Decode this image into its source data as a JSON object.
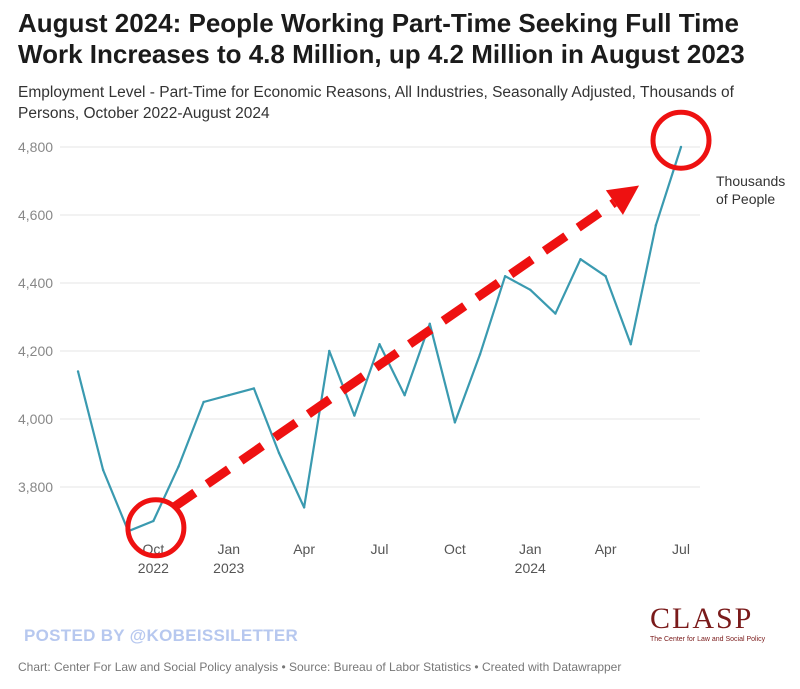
{
  "title": "August 2024: People Working Part-Time Seeking Full Time Work Increases to 4.8 Million, up 4.2 Million in August 2023",
  "subtitle": "Employment Level - Part-Time for Economic Reasons, All Industries, Seasonally Adjusted, Thousands of Persons, October 2022-August 2024",
  "watermark": "POSTED BY @KOBEISSILETTER",
  "logo": {
    "word": "CLASP",
    "tagline": "The Center for Law and Social Policy"
  },
  "footer": "Chart: Center For Law and Social Policy analysis • Source: Bureau of Labor Statistics • Created with Datawrapper",
  "chart_data": {
    "type": "line",
    "x_labels": [
      "Oct\n2022",
      "Jan\n2023",
      "Apr",
      "Jul",
      "Oct",
      "Jan\n2024",
      "Apr",
      "Jul"
    ],
    "x_label_index": [
      3,
      6,
      9,
      12,
      15,
      18,
      21,
      24
    ],
    "y_ticks": [
      3800,
      4000,
      4200,
      4400,
      4600,
      4800
    ],
    "y_tick_labels": [
      "3,800",
      "4,000",
      "4,200",
      "4,400",
      "4,600",
      "4,800"
    ],
    "ylim": [
      3620,
      4850
    ],
    "grid": true,
    "series": [
      {
        "color": "#3a9ab0",
        "values": [
          4140,
          3850,
          3670,
          3700,
          3860,
          4050,
          4070,
          4090,
          3900,
          3740,
          4200,
          4010,
          4220,
          4070,
          4280,
          3990,
          4190,
          4420,
          4380,
          4310,
          4470,
          4420,
          4220,
          4570,
          4800
        ]
      }
    ],
    "annotation": "Thousands of People",
    "trend_arrow": {
      "color": "#ee1111",
      "from": [
        3.8,
        3740
      ],
      "to": [
        22.2,
        4680
      ]
    },
    "circles": [
      {
        "x": 3.1,
        "y": 3680
      },
      {
        "x": 24.0,
        "y": 4820
      }
    ]
  }
}
